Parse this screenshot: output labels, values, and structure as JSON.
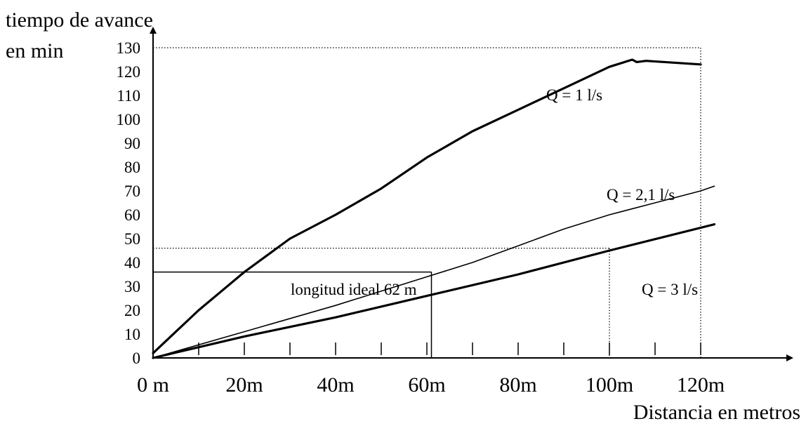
{
  "chart_data": {
    "type": "line",
    "ylabel_line1": "tiempo de avance",
    "ylabel_line2": "en min",
    "xlabel": "Distancia en metros",
    "xlim": [
      0,
      140
    ],
    "ylim": [
      0,
      130
    ],
    "y_ticks": [
      0,
      10,
      20,
      30,
      40,
      50,
      60,
      70,
      80,
      90,
      100,
      110,
      120,
      130
    ],
    "x_tick_labels": [
      {
        "value": 0,
        "label": "0 m"
      },
      {
        "value": 20,
        "label": "20m"
      },
      {
        "value": 40,
        "label": "40m"
      },
      {
        "value": 60,
        "label": "60m"
      },
      {
        "value": 80,
        "label": "80m"
      },
      {
        "value": 100,
        "label": "100m"
      },
      {
        "value": 120,
        "label": "120m"
      }
    ],
    "x_minor_ticks": [
      10,
      20,
      30,
      40,
      50,
      60,
      70,
      80,
      90,
      100,
      110,
      120
    ],
    "series": [
      {
        "name": "Q = 1 l/s",
        "weight": "thick",
        "x": [
          0,
          5,
          10,
          15,
          20,
          25,
          30,
          40,
          50,
          60,
          70,
          80,
          90,
          100,
          105,
          106,
          108,
          120
        ],
        "y": [
          2,
          11,
          20,
          28,
          36,
          43,
          50,
          60,
          71,
          84,
          95,
          104,
          113,
          122,
          125,
          124,
          124.5,
          123
        ]
      },
      {
        "name": "Q = 2,1 l/s",
        "weight": "thin",
        "x": [
          0,
          20,
          40,
          60,
          70,
          80,
          90,
          100,
          110,
          120,
          123
        ],
        "y": [
          0,
          11,
          22,
          34,
          40,
          47,
          54,
          60,
          65,
          70,
          72
        ]
      },
      {
        "name": "Q = 3 l/s",
        "weight": "thick",
        "x": [
          0,
          20,
          40,
          60,
          80,
          100,
          123
        ],
        "y": [
          0,
          9,
          17,
          26,
          35,
          45,
          56
        ]
      }
    ],
    "annotations": [
      {
        "text": "longitud ideal 62 m"
      }
    ],
    "reference_lines": {
      "solid_h_y": 36,
      "solid_v_x": 61,
      "dotted_h_y": 46,
      "dotted_v_x": 100,
      "dotted_top_y": 130,
      "dotted_right_x": 120
    }
  }
}
